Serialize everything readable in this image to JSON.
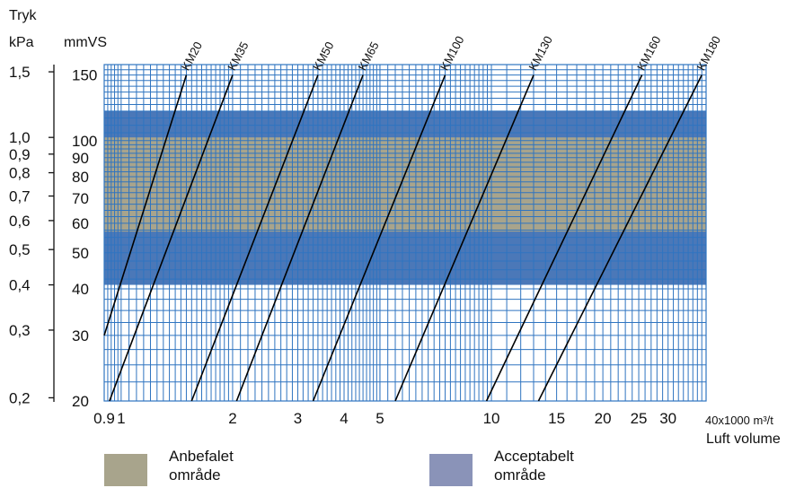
{
  "chart_data": {
    "type": "line",
    "title": "",
    "xlabel": "Luft volume",
    "x_unit": "40x1000 m³/t",
    "ylabel_top": "Tryk",
    "yunit_kpa": "kPa",
    "yunit_mmvs": "mmVS",
    "x_scale": "log",
    "y_scale": "log",
    "xlim": [
      0.9,
      38
    ],
    "ylim_mmvs": [
      20,
      160
    ],
    "x_ticks": [
      0.9,
      1,
      2,
      3,
      4,
      5,
      10,
      15,
      20,
      25,
      30
    ],
    "x_tick_labels": [
      "0.9",
      "1",
      "2",
      "3",
      "4",
      "5",
      "10",
      "15",
      "20",
      "25",
      "30"
    ],
    "y_ticks_mmvs": [
      20,
      30,
      40,
      50,
      60,
      70,
      80,
      90,
      100,
      150
    ],
    "y_tick_labels_mmvs": [
      "20",
      "30",
      "40",
      "50",
      "60",
      "70",
      "80",
      "90",
      "100",
      "150"
    ],
    "y_ticks_kpa": [
      {
        "label": "1,5",
        "mmvs": 153
      },
      {
        "label": "1,0",
        "mmvs": 102
      },
      {
        "label": "0,9",
        "mmvs": 92
      },
      {
        "label": "0,8",
        "mmvs": 82
      },
      {
        "label": "0,7",
        "mmvs": 71
      },
      {
        "label": "0,6",
        "mmvs": 61
      },
      {
        "label": "0,5",
        "mmvs": 51
      },
      {
        "label": "0,4",
        "mmvs": 41
      },
      {
        "label": "0,3",
        "mmvs": 31
      },
      {
        "label": "0,2",
        "mmvs": 20.4
      }
    ],
    "bands": [
      {
        "name": "Acceptabelt område",
        "ymin": 41,
        "ymax": 120,
        "color": "#4b78b8"
      },
      {
        "name": "Anbefalet område",
        "ymin": 57,
        "ymax": 102,
        "color": "#a8a48c"
      }
    ],
    "series": [
      {
        "name": "KM20",
        "points": [
          [
            0.9,
            30
          ],
          [
            1.5,
            150
          ]
        ]
      },
      {
        "name": "KM35",
        "points": [
          [
            0.93,
            20
          ],
          [
            2.0,
            150
          ]
        ]
      },
      {
        "name": "KM50",
        "points": [
          [
            1.55,
            20
          ],
          [
            3.4,
            150
          ]
        ]
      },
      {
        "name": "KM65",
        "points": [
          [
            2.05,
            20
          ],
          [
            4.5,
            150
          ]
        ]
      },
      {
        "name": "KM100",
        "points": [
          [
            3.3,
            20
          ],
          [
            7.5,
            150
          ]
        ]
      },
      {
        "name": "KM130",
        "points": [
          [
            5.5,
            20
          ],
          [
            13.0,
            150
          ]
        ]
      },
      {
        "name": "KM160",
        "points": [
          [
            9.7,
            20
          ],
          [
            25.5,
            150
          ]
        ]
      },
      {
        "name": "KM180",
        "points": [
          [
            13.4,
            20
          ],
          [
            37.0,
            150
          ]
        ]
      }
    ],
    "grid": true,
    "colors": {
      "grid": "#2f74c0",
      "line": "#000000",
      "recommended": "#a8a48c",
      "acceptable": "#4b78b8"
    }
  },
  "legend": {
    "recommended": {
      "line1": "Anbefalet",
      "line2": "område",
      "color": "#a8a48c"
    },
    "acceptable": {
      "line1": "Acceptabelt",
      "line2": "område",
      "color": "#8a93b8"
    }
  }
}
